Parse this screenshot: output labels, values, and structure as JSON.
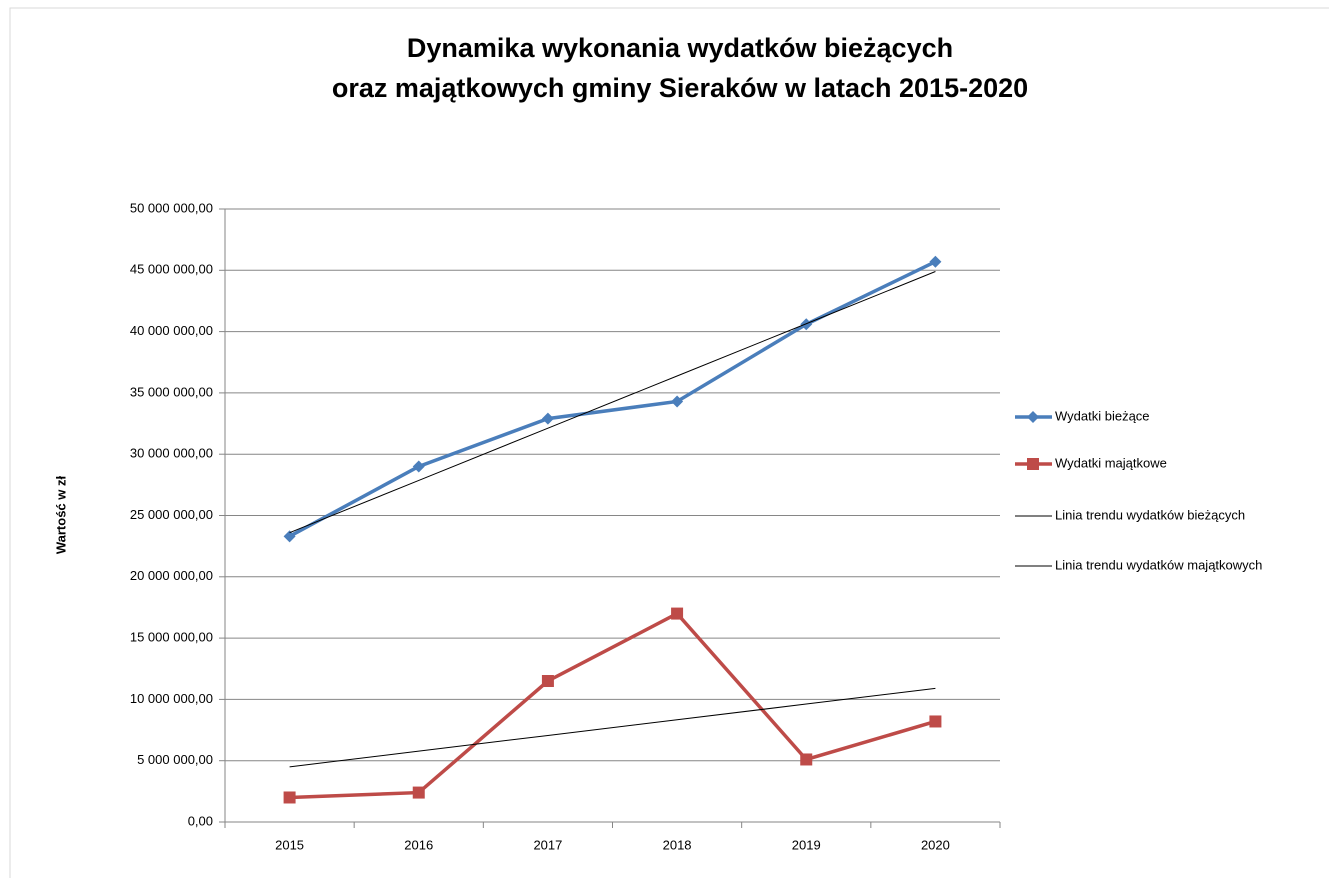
{
  "chart_data": {
    "type": "line",
    "title": [
      "Dynamika wykonania wydatków bieżących",
      "oraz majątkowych gminy Sieraków w latach 2015-2020"
    ],
    "y_label": "Wartość w zł",
    "categories": [
      "2015",
      "2016",
      "2017",
      "2018",
      "2019",
      "2020"
    ],
    "series": [
      {
        "name": "Wydatki bieżące",
        "color": "#4a7ebb",
        "marker": "diamond",
        "width": 3.5,
        "values": [
          23300000,
          29000000,
          32900000,
          34300000,
          40600000,
          45700000
        ]
      },
      {
        "name": "Wydatki majątkowe",
        "color": "#be4b48",
        "marker": "square",
        "width": 3.5,
        "values": [
          2000000,
          2400000,
          11500000,
          17000000,
          5100000,
          8200000
        ]
      },
      {
        "name": "Linia trendu wydatków bieżących",
        "color": "#000000",
        "marker": "none",
        "width": 1,
        "values": [
          23600000,
          27860000,
          32120000,
          36380000,
          40640000,
          44900000
        ]
      },
      {
        "name": "Linia trendu wydatków majątkowych",
        "color": "#000000",
        "marker": "none",
        "width": 1,
        "values": [
          4500000,
          5780000,
          7060000,
          8340000,
          9620000,
          10900000
        ]
      }
    ],
    "ylim": [
      0,
      50000000
    ],
    "yticks": [
      {
        "value": 0,
        "label": "0,00"
      },
      {
        "value": 5000000,
        "label": "5 000 000,00"
      },
      {
        "value": 10000000,
        "label": "10 000 000,00"
      },
      {
        "value": 15000000,
        "label": "15 000 000,00"
      },
      {
        "value": 20000000,
        "label": "20 000 000,00"
      },
      {
        "value": 25000000,
        "label": "25 000 000,00"
      },
      {
        "value": 30000000,
        "label": "30 000 000,00"
      },
      {
        "value": 35000000,
        "label": "35 000 000,00"
      },
      {
        "value": 40000000,
        "label": "40 000 000,00"
      },
      {
        "value": 45000000,
        "label": "45 000 000,00"
      },
      {
        "value": 50000000,
        "label": "50 000 000,00"
      }
    ],
    "grid": true,
    "legend": "right"
  }
}
